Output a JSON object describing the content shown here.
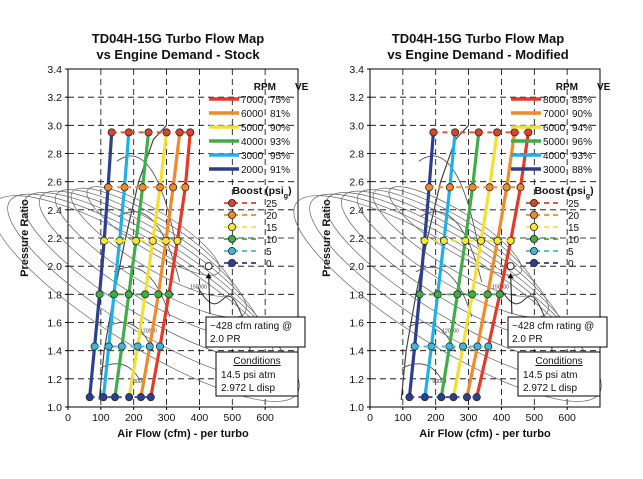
{
  "chart_data": [
    {
      "type": "line",
      "title": "TD04H-15G Turbo Flow Map",
      "subtitle": "vs Engine Demand - Stock",
      "xlabel": "Air Flow (cfm) - per turbo",
      "ylabel": "Pressure Ratio",
      "xlim": [
        0,
        700
      ],
      "ylim": [
        1.0,
        3.4
      ],
      "xticks": [
        "0",
        "100",
        "200",
        "300",
        "400",
        "500",
        "600"
      ],
      "yticks": [
        "1.0",
        "1.2",
        "1.4",
        "1.6",
        "1.8",
        "2.0",
        "2.2",
        "2.4",
        "2.6",
        "2.8",
        "3.0",
        "3.2",
        "3.4"
      ],
      "grid": true,
      "legend_header": {
        "rpm": "RPM",
        "ve": "VE"
      },
      "boost_legend_title": "Boost (psi",
      "boost_legend_sub": "g",
      "boost_legend_close": ")",
      "boost_levels": [
        {
          "label": "25",
          "color": "#d9452b"
        },
        {
          "label": "20",
          "color": "#f08a2b"
        },
        {
          "label": "15",
          "color": "#f2e63a"
        },
        {
          "label": "10",
          "color": "#3fae49"
        },
        {
          "label": "5",
          "color": "#41b6d8"
        },
        {
          "label": "0",
          "color": "#2d3f8f"
        }
      ],
      "boost_pr": [
        2.95,
        2.56,
        2.18,
        1.8,
        1.43,
        1.07
      ],
      "series": [
        {
          "name": "7000",
          "ve": "75%",
          "color": "#e53a27",
          "values": [
            [
              252,
              1.07
            ],
            [
              280,
              1.43
            ],
            [
              307,
              1.8
            ],
            [
              333,
              2.18
            ],
            [
              357,
              2.56
            ],
            [
              372,
              2.95
            ]
          ]
        },
        {
          "name": "6000",
          "ve": "81%",
          "color": "#f28a2c",
          "values": [
            [
              222,
              1.07
            ],
            [
              249,
              1.43
            ],
            [
              275,
              1.8
            ],
            [
              298,
              2.18
            ],
            [
              320,
              2.56
            ],
            [
              340,
              2.95
            ]
          ]
        },
        {
          "name": "5000",
          "ve": "90%",
          "color": "#f3e033",
          "values": [
            [
              186,
              1.07
            ],
            [
              212,
              1.43
            ],
            [
              235,
              1.8
            ],
            [
              258,
              2.18
            ],
            [
              280,
              2.56
            ],
            [
              300,
              2.95
            ]
          ]
        },
        {
          "name": "4000",
          "ve": "93%",
          "color": "#3fae49",
          "values": [
            [
              143,
              1.07
            ],
            [
              164,
              1.43
            ],
            [
              185,
              1.8
            ],
            [
              207,
              2.18
            ],
            [
              227,
              2.56
            ],
            [
              245,
              2.95
            ]
          ]
        },
        {
          "name": "3000",
          "ve": "95%",
          "color": "#1fb0e6",
          "values": [
            [
              108,
              1.07
            ],
            [
              124,
              1.43
            ],
            [
              140,
              1.8
            ],
            [
              157,
              2.18
            ],
            [
              172,
              2.56
            ],
            [
              185,
              2.95
            ]
          ]
        },
        {
          "name": "2000",
          "ve": "91%",
          "color": "#2d3f8f",
          "values": [
            [
              66,
              1.07
            ],
            [
              81,
              1.43
            ],
            [
              96,
              1.8
            ],
            [
              110,
              2.18
            ],
            [
              122,
              2.56
            ],
            [
              133,
              2.95
            ]
          ]
        }
      ],
      "annotation": "~428 cfm rating @ 2.0 PR",
      "annotation_lines": [
        "~428 cfm rating @",
        "2.0 PR"
      ],
      "conditions_title": "Conditions",
      "conditions_lines": [
        "14.5 psi atm",
        "2.972 L disp"
      ],
      "speed_labels": [
        "150000",
        "120000",
        "90000"
      ]
    },
    {
      "type": "line",
      "title": "TD04H-15G Turbo Flow Map",
      "subtitle": "vs Engine Demand - Modified",
      "xlabel": "Air Flow (cfm) - per turbo",
      "ylabel": "Pressure Ratio",
      "xlim": [
        0,
        700
      ],
      "ylim": [
        1.0,
        3.4
      ],
      "xticks": [
        "0",
        "100",
        "200",
        "300",
        "400",
        "500",
        "600"
      ],
      "yticks": [
        "1.0",
        "1.2",
        "1.4",
        "1.6",
        "1.8",
        "2.0",
        "2.2",
        "2.4",
        "2.6",
        "2.8",
        "3.0",
        "3.2",
        "3.4"
      ],
      "grid": true,
      "legend_header": {
        "rpm": "RPM",
        "ve": "VE"
      },
      "boost_legend_title": "Boost (psi",
      "boost_legend_sub": "g",
      "boost_legend_close": ")",
      "boost_levels": [
        {
          "label": "25",
          "color": "#d9452b"
        },
        {
          "label": "20",
          "color": "#f08a2b"
        },
        {
          "label": "15",
          "color": "#f2e63a"
        },
        {
          "label": "10",
          "color": "#3fae49"
        },
        {
          "label": "5",
          "color": "#41b6d8"
        },
        {
          "label": "0",
          "color": "#2d3f8f"
        }
      ],
      "boost_pr": [
        2.95,
        2.56,
        2.18,
        1.8,
        1.43,
        1.07
      ],
      "series": [
        {
          "name": "8000",
          "ve": "85%",
          "color": "#e53a27",
          "values": [
            [
              325,
              1.07
            ],
            [
              360,
              1.43
            ],
            [
              395,
              1.8
            ],
            [
              428,
              2.18
            ],
            [
              458,
              2.56
            ],
            [
              482,
              2.95
            ]
          ]
        },
        {
          "name": "7000",
          "ve": "90%",
          "color": "#f28a2c",
          "values": [
            [
              295,
              1.07
            ],
            [
              327,
              1.43
            ],
            [
              358,
              1.8
            ],
            [
              388,
              2.18
            ],
            [
              416,
              2.56
            ],
            [
              440,
              2.95
            ]
          ]
        },
        {
          "name": "6000",
          "ve": "94%",
          "color": "#f3e033",
          "values": [
            [
              254,
              1.07
            ],
            [
              283,
              1.43
            ],
            [
              311,
              1.8
            ],
            [
              338,
              2.18
            ],
            [
              364,
              2.56
            ],
            [
              387,
              2.95
            ]
          ]
        },
        {
          "name": "5000",
          "ve": "96%",
          "color": "#3fae49",
          "values": [
            [
              217,
              1.07
            ],
            [
              242,
              1.43
            ],
            [
              266,
              1.8
            ],
            [
              290,
              2.18
            ],
            [
              312,
              2.56
            ],
            [
              331,
              2.95
            ]
          ]
        },
        {
          "name": "4000",
          "ve": "93%",
          "color": "#1fb0e6",
          "values": [
            [
              167,
              1.07
            ],
            [
              187,
              1.43
            ],
            [
              206,
              1.8
            ],
            [
              225,
              2.18
            ],
            [
              243,
              2.56
            ],
            [
              259,
              2.95
            ]
          ]
        },
        {
          "name": "3000",
          "ve": "88%",
          "color": "#2d3f8f",
          "values": [
            [
              120,
              1.07
            ],
            [
              136,
              1.43
            ],
            [
              151,
              1.8
            ],
            [
              166,
              2.18
            ],
            [
              180,
              2.56
            ],
            [
              193,
              2.95
            ]
          ]
        }
      ],
      "annotation": "~428 cfm rating @ 2.0 PR",
      "annotation_lines": [
        "~428 cfm rating @",
        "2.0 PR"
      ],
      "conditions_title": "Conditions",
      "conditions_lines": [
        "14.5 psi atm",
        "2.972 L disp"
      ],
      "speed_labels": [
        "150000",
        "120000",
        "90000"
      ]
    }
  ]
}
